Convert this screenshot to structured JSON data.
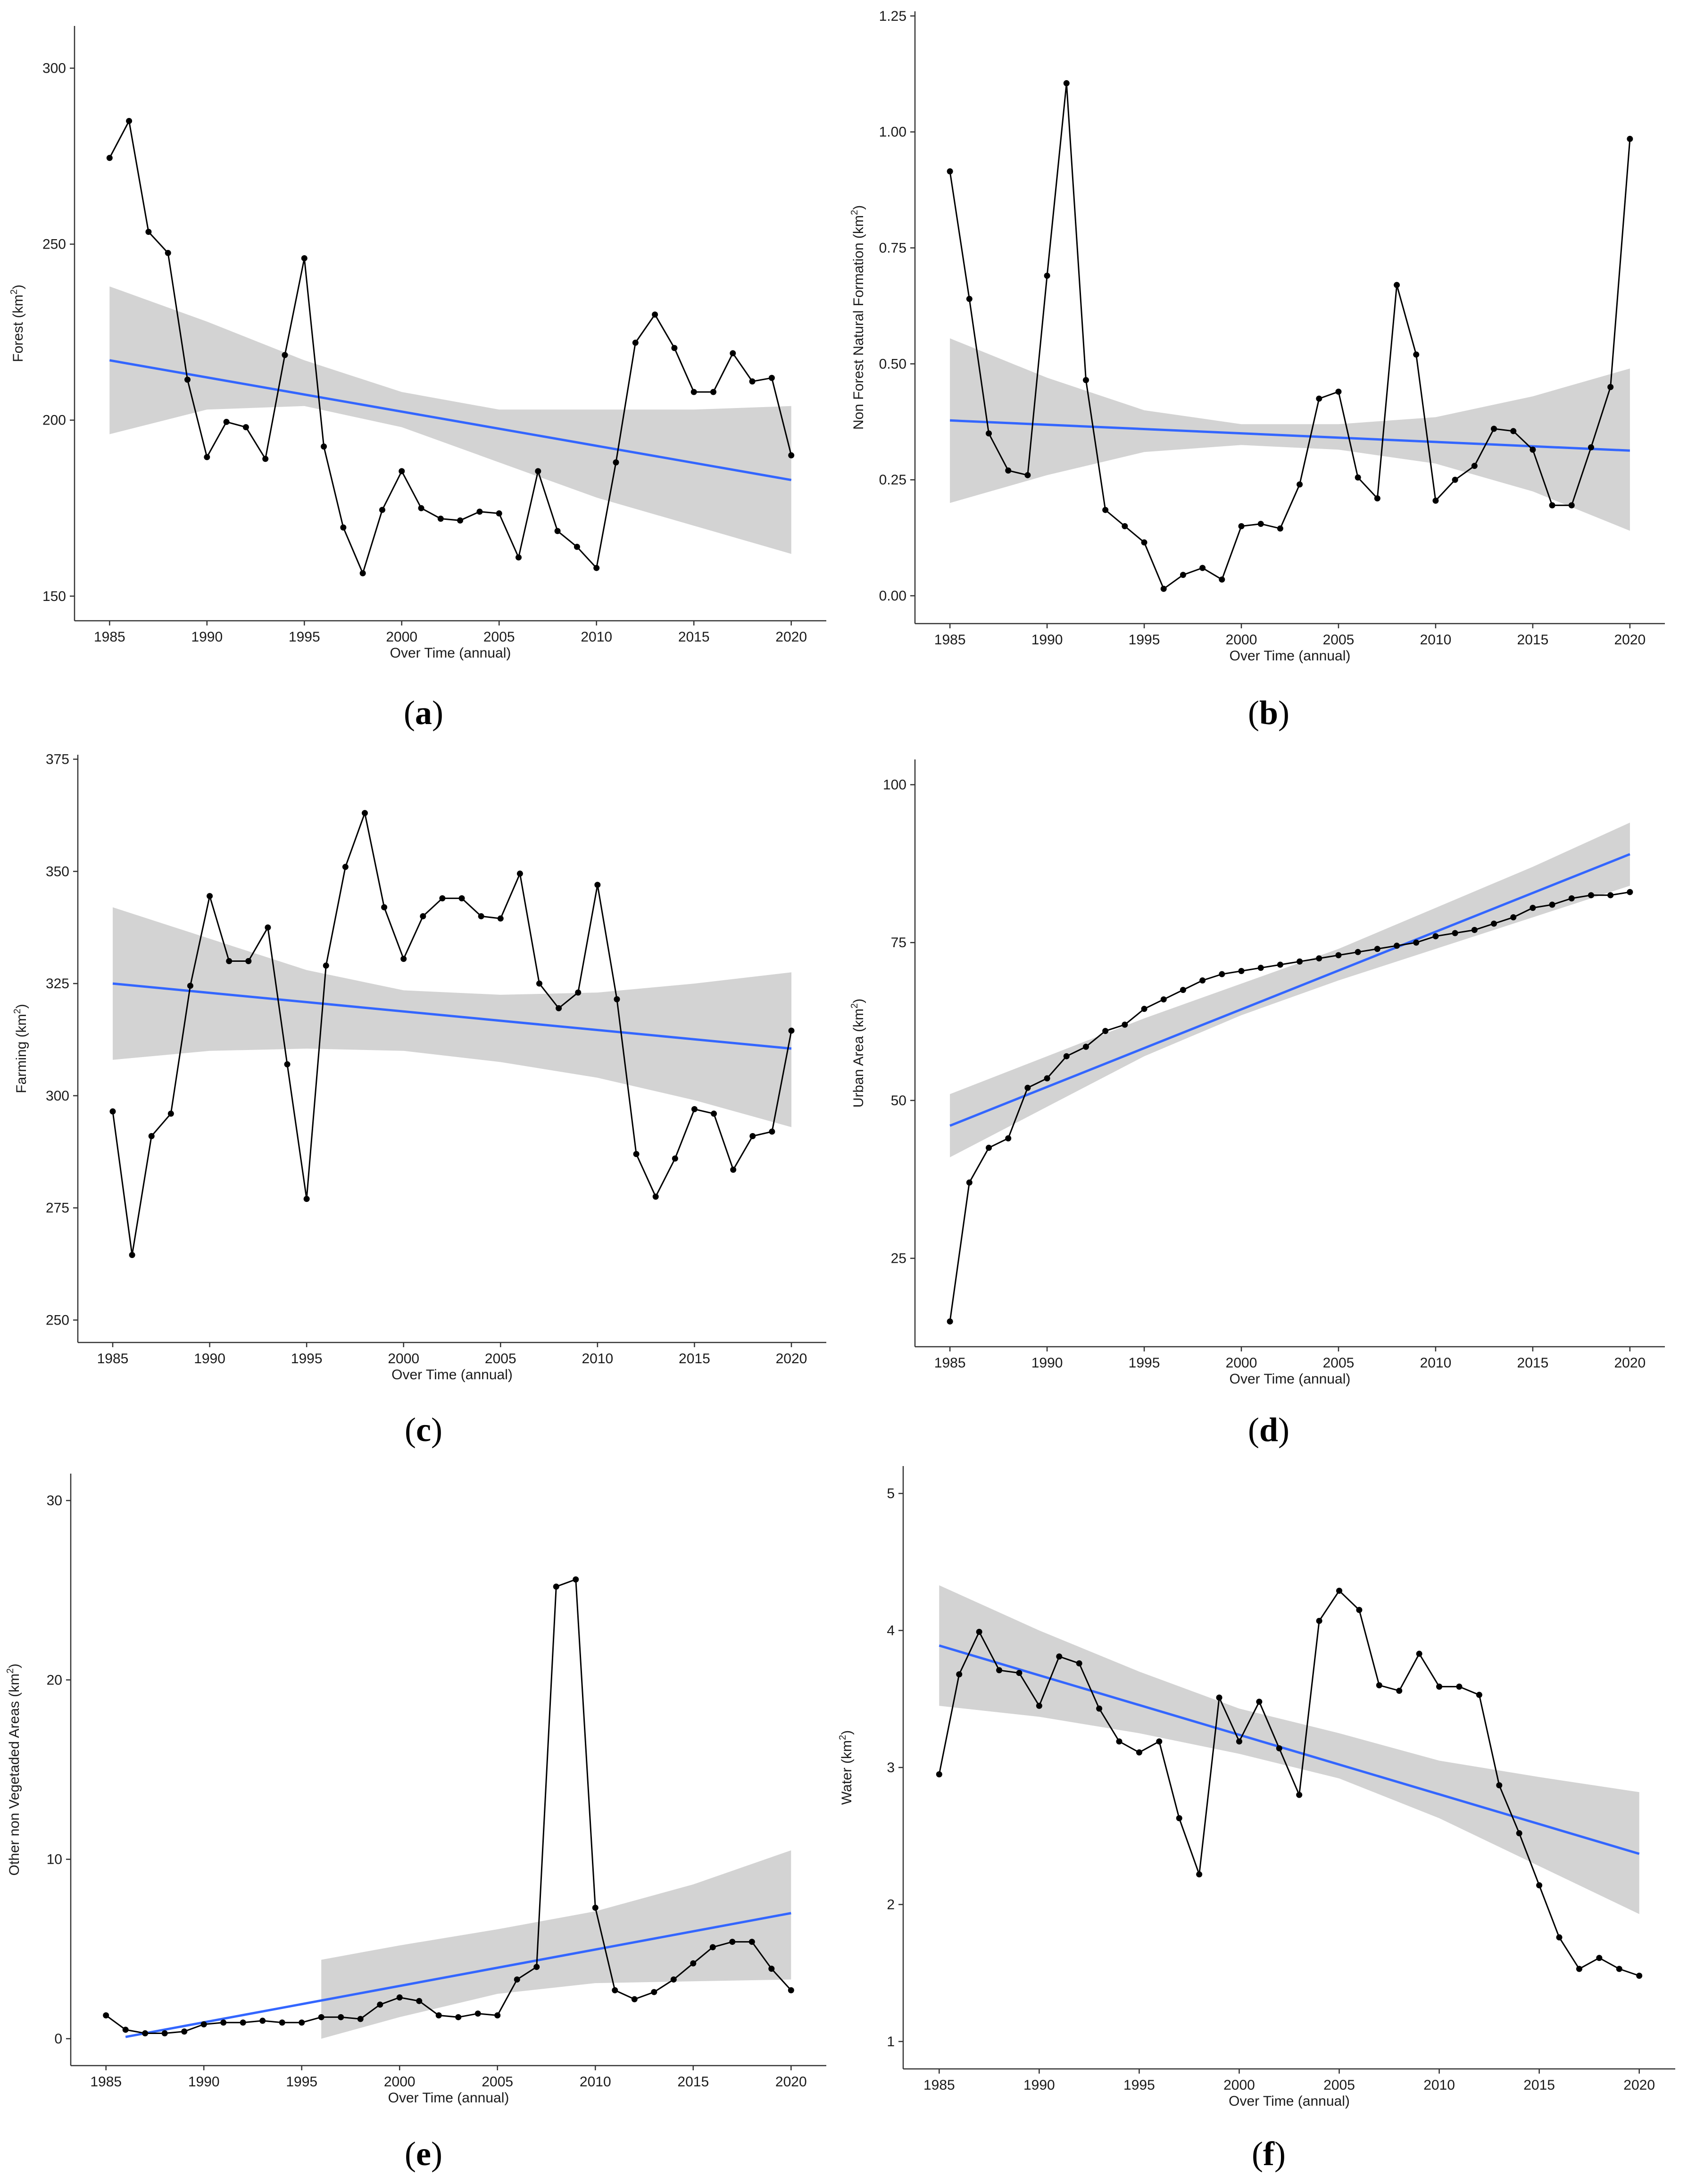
{
  "chart_data": [
    {
      "type": "line",
      "panel": "(a)",
      "panel_letter": "a",
      "xlabel": "Over Time (annual)",
      "ylabel": "Forest (km²)",
      "ylim": [
        143,
        312
      ],
      "yticks": [
        150,
        200,
        250,
        300
      ],
      "xticks": [
        1985,
        1990,
        1995,
        2000,
        2005,
        2010,
        2015,
        2020
      ],
      "xlim": [
        1983.2,
        2021.8
      ],
      "series": [
        {
          "name": "Forest",
          "x": [
            1985,
            1986,
            1987,
            1988,
            1989,
            1990,
            1991,
            1992,
            1993,
            1994,
            1995,
            1996,
            1997,
            1998,
            1999,
            2000,
            2001,
            2002,
            2003,
            2004,
            2005,
            2006,
            2007,
            2008,
            2009,
            2010,
            2011,
            2012,
            2013,
            2014,
            2015,
            2016,
            2017,
            2018,
            2019,
            2020
          ],
          "values": [
            274.5,
            285,
            253.5,
            247.5,
            211.5,
            189.5,
            199.5,
            198,
            189,
            218.5,
            246,
            192.5,
            169.5,
            156.5,
            174.5,
            185.5,
            175,
            172,
            171.5,
            174,
            173.5,
            161,
            185.5,
            168.5,
            164,
            158,
            188,
            222,
            230,
            220.5,
            208,
            208,
            219,
            211,
            212,
            190
          ]
        }
      ],
      "trend": {
        "x": [
          1985,
          2020
        ],
        "values": [
          217,
          183
        ]
      },
      "confidence_band": {
        "x": [
          1985,
          1990,
          1995,
          2000,
          2005,
          2010,
          2015,
          2020
        ],
        "lower": [
          196,
          203,
          204,
          198,
          188,
          178,
          170,
          162
        ],
        "upper": [
          238,
          228,
          217,
          208,
          203,
          203,
          203,
          204
        ]
      }
    },
    {
      "type": "line",
      "panel": "(b)",
      "panel_letter": "b",
      "xlabel": "Over Time (annual)",
      "ylabel": "Non Forest Natural Formation (km²)",
      "ylim": [
        -0.06,
        1.26
      ],
      "yticks": [
        0.0,
        0.25,
        0.5,
        0.75,
        1.0,
        1.25
      ],
      "ytick_labels": [
        "0.00",
        "0.25",
        "0.50",
        "0.75",
        "1.00",
        "1.25"
      ],
      "xticks": [
        1985,
        1990,
        1995,
        2000,
        2005,
        2010,
        2015,
        2020
      ],
      "xlim": [
        1983.2,
        2021.8
      ],
      "series": [
        {
          "name": "Non Forest Natural Formation",
          "x": [
            1985,
            1986,
            1987,
            1988,
            1989,
            1990,
            1991,
            1992,
            1993,
            1994,
            1995,
            1996,
            1997,
            1998,
            1999,
            2000,
            2001,
            2002,
            2003,
            2004,
            2005,
            2006,
            2007,
            2008,
            2009,
            2010,
            2011,
            2012,
            2013,
            2014,
            2015,
            2016,
            2017,
            2018,
            2019,
            2020
          ],
          "values": [
            0.915,
            0.64,
            0.35,
            0.27,
            0.26,
            0.69,
            1.105,
            0.465,
            0.185,
            0.15,
            0.115,
            0.015,
            0.045,
            0.06,
            0.035,
            0.15,
            0.155,
            0.145,
            0.24,
            0.425,
            0.44,
            0.255,
            0.21,
            0.67,
            0.52,
            0.205,
            0.25,
            0.28,
            0.36,
            0.355,
            0.315,
            0.195,
            0.195,
            0.32,
            0.45,
            0.985
          ]
        }
      ],
      "trend": {
        "x": [
          1985,
          2020
        ],
        "values": [
          0.378,
          0.313
        ]
      },
      "confidence_band": {
        "x": [
          1985,
          1990,
          1995,
          2000,
          2005,
          2010,
          2015,
          2020
        ],
        "lower": [
          0.2,
          0.26,
          0.31,
          0.325,
          0.315,
          0.285,
          0.225,
          0.14
        ],
        "upper": [
          0.555,
          0.47,
          0.4,
          0.37,
          0.37,
          0.385,
          0.43,
          0.49
        ]
      }
    },
    {
      "type": "line",
      "panel": "(c)",
      "panel_letter": "c",
      "xlabel": "Over Time (annual)",
      "ylabel": "Farming (km²)",
      "ylim": [
        245,
        376
      ],
      "yticks": [
        250,
        275,
        300,
        325,
        350,
        375
      ],
      "xticks": [
        1985,
        1990,
        1995,
        2000,
        2005,
        2010,
        2015,
        2020
      ],
      "xlim": [
        1983.2,
        2021.8
      ],
      "series": [
        {
          "name": "Farming",
          "x": [
            1985,
            1986,
            1987,
            1988,
            1989,
            1990,
            1991,
            1992,
            1993,
            1994,
            1995,
            1996,
            1997,
            1998,
            1999,
            2000,
            2001,
            2002,
            2003,
            2004,
            2005,
            2006,
            2007,
            2008,
            2009,
            2010,
            2011,
            2012,
            2013,
            2014,
            2015,
            2016,
            2017,
            2018,
            2019,
            2020
          ],
          "values": [
            296.5,
            264.5,
            291,
            296,
            324.5,
            344.5,
            330,
            330,
            337.5,
            307,
            277,
            329,
            351,
            363,
            342,
            330.5,
            340,
            344,
            344,
            340,
            339.5,
            349.5,
            325,
            319.5,
            323,
            347,
            321.5,
            287,
            277.5,
            286,
            297,
            296,
            283.5,
            291,
            292,
            314.5
          ]
        }
      ],
      "trend": {
        "x": [
          1985,
          2020
        ],
        "values": [
          325,
          310.5
        ]
      },
      "confidence_band": {
        "x": [
          1985,
          1990,
          1995,
          2000,
          2005,
          2010,
          2015,
          2020
        ],
        "lower": [
          308,
          310,
          310.5,
          310,
          307.5,
          304,
          299,
          293
        ],
        "upper": [
          342,
          335,
          328,
          323.5,
          322.5,
          323,
          325,
          327.5
        ]
      }
    },
    {
      "type": "line",
      "panel": "(d)",
      "panel_letter": "d",
      "xlabel": "Over Time (annual)",
      "ylabel": "Urban Area (km²)",
      "ylim": [
        11,
        104
      ],
      "yticks": [
        25,
        50,
        75,
        100
      ],
      "xticks": [
        1985,
        1990,
        1995,
        2000,
        2005,
        2010,
        2015,
        2020
      ],
      "xlim": [
        1983.2,
        2021.8
      ],
      "series": [
        {
          "name": "Urban Area",
          "x": [
            1985,
            1986,
            1987,
            1988,
            1989,
            1990,
            1991,
            1992,
            1993,
            1994,
            1995,
            1996,
            1997,
            1998,
            1999,
            2000,
            2001,
            2002,
            2003,
            2004,
            2005,
            2006,
            2007,
            2008,
            2009,
            2010,
            2011,
            2012,
            2013,
            2014,
            2015,
            2016,
            2017,
            2018,
            2019,
            2020
          ],
          "values": [
            15,
            37,
            42.5,
            44,
            52,
            53.5,
            57,
            58.5,
            61,
            62,
            64.5,
            66,
            67.5,
            69,
            70,
            70.5,
            71,
            71.5,
            72,
            72.5,
            73,
            73.5,
            74,
            74.5,
            75,
            76,
            76.5,
            77,
            78,
            79,
            80.5,
            81,
            82,
            82.5,
            82.5,
            83
          ]
        }
      ],
      "trend": {
        "x": [
          1985,
          2020
        ],
        "values": [
          46,
          89
        ]
      },
      "confidence_band": {
        "x": [
          1985,
          1990,
          1995,
          2000,
          2005,
          2010,
          2015,
          2020
        ],
        "lower": [
          41,
          49,
          57,
          63.5,
          69,
          74,
          79,
          84
        ],
        "upper": [
          51,
          57,
          63,
          68.5,
          74,
          80.5,
          87,
          94
        ]
      }
    },
    {
      "type": "line",
      "panel": "(e)",
      "panel_letter": "e",
      "xlabel": "Over Time (annual)",
      "ylabel": "Other non Vegetaded Areas (km²)",
      "ylim": [
        -1.5,
        31.5
      ],
      "yticks": [
        0,
        10,
        20,
        30
      ],
      "xticks": [
        1985,
        1990,
        1995,
        2000,
        2005,
        2010,
        2015,
        2020
      ],
      "xlim": [
        1983.2,
        2021.8
      ],
      "series": [
        {
          "name": "Other non Vegetaded Areas",
          "x": [
            1985,
            1986,
            1987,
            1988,
            1989,
            1990,
            1991,
            1992,
            1993,
            1994,
            1995,
            1996,
            1997,
            1998,
            1999,
            2000,
            2001,
            2002,
            2003,
            2004,
            2005,
            2006,
            2007,
            2008,
            2009,
            2010,
            2011,
            2012,
            2013,
            2014,
            2015,
            2016,
            2017,
            2018,
            2019,
            2020
          ],
          "values": [
            1.3,
            0.5,
            0.3,
            0.3,
            0.4,
            0.8,
            0.9,
            0.9,
            1.0,
            0.9,
            0.9,
            1.2,
            1.2,
            1.1,
            1.9,
            2.3,
            2.1,
            1.3,
            1.2,
            1.4,
            1.3,
            3.3,
            4.0,
            25.2,
            25.6,
            7.3,
            2.7,
            2.2,
            2.6,
            3.3,
            4.2,
            5.1,
            5.4,
            5.4,
            3.9,
            2.7
          ]
        }
      ],
      "trend": {
        "x": [
          1986,
          2020
        ],
        "values": [
          0.1,
          7.0
        ]
      },
      "confidence_band": {
        "x": [
          1996,
          2000,
          2005,
          2010,
          2015,
          2020
        ],
        "lower": [
          0.0,
          1.2,
          2.5,
          3.1,
          3.2,
          3.3
        ],
        "upper": [
          4.4,
          5.2,
          6.1,
          7.1,
          8.6,
          10.5
        ]
      }
    },
    {
      "type": "line",
      "panel": "(f)",
      "panel_letter": "f",
      "xlabel": "Over Time (annual)",
      "ylabel": "Water (km²)",
      "ylim": [
        0.8,
        5.2
      ],
      "yticks": [
        1,
        2,
        3,
        4,
        5
      ],
      "xticks": [
        1985,
        1990,
        1995,
        2000,
        2005,
        2010,
        2015,
        2020
      ],
      "xlim": [
        1983.2,
        2021.8
      ],
      "series": [
        {
          "name": "Water",
          "x": [
            1985,
            1986,
            1987,
            1988,
            1989,
            1990,
            1991,
            1992,
            1993,
            1994,
            1995,
            1996,
            1997,
            1998,
            1999,
            2000,
            2001,
            2002,
            2003,
            2004,
            2005,
            2006,
            2007,
            2008,
            2009,
            2010,
            2011,
            2012,
            2013,
            2014,
            2015,
            2016,
            2017,
            2018,
            2019,
            2020
          ],
          "values": [
            2.95,
            3.68,
            3.99,
            3.71,
            3.69,
            3.45,
            3.81,
            3.76,
            3.43,
            3.19,
            3.11,
            3.19,
            2.63,
            2.22,
            3.51,
            3.19,
            3.48,
            3.14,
            2.8,
            4.07,
            4.29,
            4.15,
            3.6,
            3.56,
            3.83,
            3.59,
            3.59,
            3.53,
            2.87,
            2.52,
            2.14,
            1.76,
            1.53,
            1.61,
            1.53,
            1.48
          ]
        }
      ],
      "trend": {
        "x": [
          1985,
          2020
        ],
        "values": [
          3.89,
          2.37
        ]
      },
      "confidence_band": {
        "x": [
          1985,
          1990,
          1995,
          2000,
          2005,
          2010,
          2015,
          2020
        ],
        "lower": [
          3.45,
          3.37,
          3.25,
          3.1,
          2.92,
          2.63,
          2.28,
          1.93
        ],
        "upper": [
          4.33,
          4.0,
          3.7,
          3.43,
          3.25,
          3.05,
          2.93,
          2.82
        ]
      }
    }
  ],
  "colors": {
    "trend": "#3366ff",
    "confidence_band": "#d3d3d3",
    "series": "#000000",
    "axis": "#333333"
  }
}
